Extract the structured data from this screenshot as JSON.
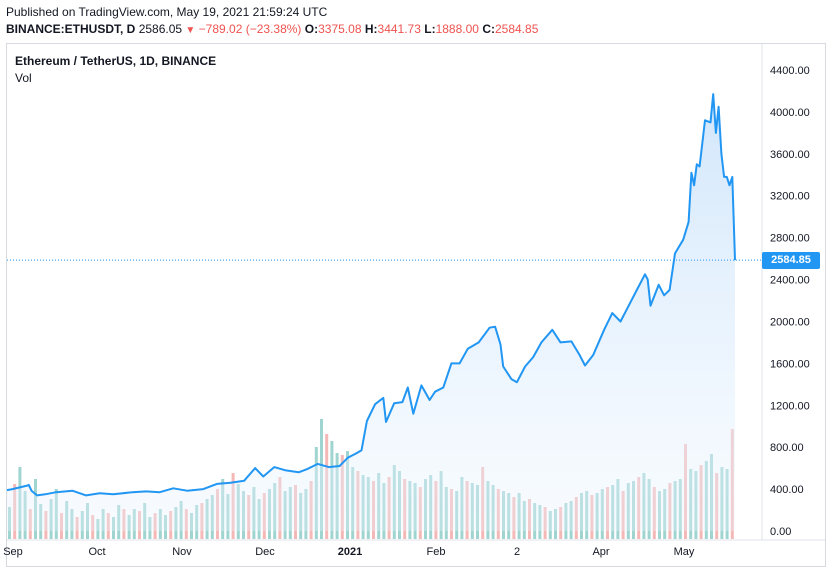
{
  "header": {
    "published": "Published on TradingView.com, May 19, 2021 21:59:24 UTC",
    "symbol": "BINANCE:ETHUSDT, D",
    "last": "2586.05",
    "change": "−789.02 (−23.38%)",
    "open_label": "O:",
    "open": "3375.08",
    "high_label": "H:",
    "high": "3441.73",
    "low_label": "L:",
    "low": "1888.00",
    "close_label": "C:",
    "close": "2584.85"
  },
  "colors": {
    "line": "#2196f3",
    "area_top": "#cfe5fb",
    "vol_up": "#9fd4d1",
    "vol_down": "#f4b8b6",
    "down_text": "#ef5350"
  },
  "chart_data": {
    "type": "area",
    "title": "Ethereum / TetherUS, 1D, BINANCE",
    "volume_label": "Vol",
    "x_tick_labels": [
      "Sep",
      "Oct",
      "Nov",
      "Dec",
      "2021",
      "Feb",
      "2",
      "Apr",
      "May"
    ],
    "y_tick_labels": [
      "4400.00",
      "4000.00",
      "3600.00",
      "3200.00",
      "2800.00",
      "2400.00",
      "2000.00",
      "1600.00",
      "1200.00",
      "800.00",
      "400.00",
      "0.00"
    ],
    "y_ticks": [
      4400,
      4000,
      3600,
      3200,
      2800,
      2400,
      2000,
      1600,
      1200,
      800,
      400,
      0
    ],
    "ylim": [
      0,
      4500
    ],
    "last_price": 2584.85,
    "last_price_label": "2584.85",
    "x_start": "2020-08-25",
    "x_end": "2021-05-19",
    "series": [
      {
        "values": [
          [
            "2020-08-25",
            390
          ],
          [
            "2020-08-27",
            400
          ],
          [
            "2020-09-01",
            430
          ],
          [
            "2020-09-02",
            440
          ],
          [
            "2020-09-03",
            385
          ],
          [
            "2020-09-05",
            340
          ],
          [
            "2020-09-08",
            350
          ],
          [
            "2020-09-12",
            370
          ],
          [
            "2020-09-18",
            385
          ],
          [
            "2020-09-23",
            340
          ],
          [
            "2020-09-28",
            360
          ],
          [
            "2020-10-03",
            350
          ],
          [
            "2020-10-10",
            370
          ],
          [
            "2020-10-15",
            378
          ],
          [
            "2020-10-20",
            370
          ],
          [
            "2020-10-25",
            408
          ],
          [
            "2020-10-30",
            385
          ],
          [
            "2020-11-05",
            400
          ],
          [
            "2020-11-10",
            450
          ],
          [
            "2020-11-15",
            460
          ],
          [
            "2020-11-20",
            480
          ],
          [
            "2020-11-24",
            600
          ],
          [
            "2020-11-27",
            520
          ],
          [
            "2020-12-01",
            610
          ],
          [
            "2020-12-05",
            580
          ],
          [
            "2020-12-10",
            560
          ],
          [
            "2020-12-13",
            590
          ],
          [
            "2020-12-17",
            640
          ],
          [
            "2020-12-21",
            610
          ],
          [
            "2020-12-25",
            620
          ],
          [
            "2020-12-28",
            700
          ],
          [
            "2020-12-31",
            740
          ],
          [
            "2021-01-02",
            770
          ],
          [
            "2021-01-04",
            1050
          ],
          [
            "2021-01-07",
            1210
          ],
          [
            "2021-01-10",
            1270
          ],
          [
            "2021-01-11",
            1040
          ],
          [
            "2021-01-14",
            1220
          ],
          [
            "2021-01-17",
            1230
          ],
          [
            "2021-01-19",
            1370
          ],
          [
            "2021-01-21",
            1120
          ],
          [
            "2021-01-24",
            1390
          ],
          [
            "2021-01-27",
            1250
          ],
          [
            "2021-01-29",
            1330
          ],
          [
            "2021-02-01",
            1370
          ],
          [
            "2021-02-04",
            1600
          ],
          [
            "2021-02-07",
            1600
          ],
          [
            "2021-02-10",
            1740
          ],
          [
            "2021-02-14",
            1800
          ],
          [
            "2021-02-18",
            1940
          ],
          [
            "2021-02-20",
            1950
          ],
          [
            "2021-02-22",
            1780
          ],
          [
            "2021-02-23",
            1570
          ],
          [
            "2021-02-26",
            1450
          ],
          [
            "2021-02-28",
            1420
          ],
          [
            "2021-03-03",
            1570
          ],
          [
            "2021-03-06",
            1660
          ],
          [
            "2021-03-09",
            1800
          ],
          [
            "2021-03-13",
            1920
          ],
          [
            "2021-03-16",
            1800
          ],
          [
            "2021-03-20",
            1810
          ],
          [
            "2021-03-23",
            1680
          ],
          [
            "2021-03-25",
            1580
          ],
          [
            "2021-03-28",
            1680
          ],
          [
            "2021-04-01",
            1920
          ],
          [
            "2021-04-04",
            2080
          ],
          [
            "2021-04-07",
            2000
          ],
          [
            "2021-04-10",
            2150
          ],
          [
            "2021-04-13",
            2300
          ],
          [
            "2021-04-16",
            2450
          ],
          [
            "2021-04-17",
            2400
          ],
          [
            "2021-04-18",
            2150
          ],
          [
            "2021-04-21",
            2350
          ],
          [
            "2021-04-23",
            2250
          ],
          [
            "2021-04-25",
            2300
          ],
          [
            "2021-04-27",
            2650
          ],
          [
            "2021-04-30",
            2780
          ],
          [
            "2021-05-02",
            2950
          ],
          [
            "2021-05-03",
            3420
          ],
          [
            "2021-05-04",
            3300
          ],
          [
            "2021-05-05",
            3500
          ],
          [
            "2021-05-06",
            3480
          ],
          [
            "2021-05-08",
            3920
          ],
          [
            "2021-05-10",
            3900
          ],
          [
            "2021-05-11",
            4170
          ],
          [
            "2021-05-12",
            3800
          ],
          [
            "2021-05-13",
            4050
          ],
          [
            "2021-05-14",
            3600
          ],
          [
            "2021-05-15",
            3380
          ],
          [
            "2021-05-16",
            3380
          ],
          [
            "2021-05-17",
            3300
          ],
          [
            "2021-05-18",
            3380
          ],
          [
            "2021-05-19",
            2585
          ]
        ]
      }
    ],
    "volume_bars": [
      32,
      55,
      72,
      48,
      30,
      60,
      35,
      28,
      40,
      50,
      26,
      38,
      30,
      22,
      28,
      36,
      24,
      20,
      30,
      26,
      22,
      34,
      30,
      24,
      30,
      28,
      36,
      22,
      26,
      30,
      24,
      28,
      32,
      38,
      30,
      26,
      34,
      36,
      40,
      44,
      50,
      60,
      45,
      66,
      55,
      48,
      44,
      52,
      40,
      46,
      50,
      56,
      62,
      48,
      52,
      54,
      46,
      50,
      58,
      92,
      120,
      105,
      98,
      86,
      84,
      88,
      72,
      68,
      64,
      62,
      58,
      66,
      56,
      62,
      74,
      68,
      60,
      58,
      56,
      52,
      60,
      64,
      58,
      68,
      52,
      50,
      48,
      62,
      58,
      56,
      54,
      72,
      58,
      54,
      50,
      48,
      46,
      42,
      46,
      38,
      40,
      36,
      34,
      32,
      28,
      30,
      32,
      36,
      38,
      42,
      46,
      48,
      44,
      46,
      50,
      52,
      54,
      60,
      48,
      56,
      58,
      62,
      66,
      60,
      52,
      48,
      50,
      56,
      58,
      60,
      95,
      70,
      68,
      74,
      78,
      85,
      66,
      72,
      70,
      110
    ]
  }
}
